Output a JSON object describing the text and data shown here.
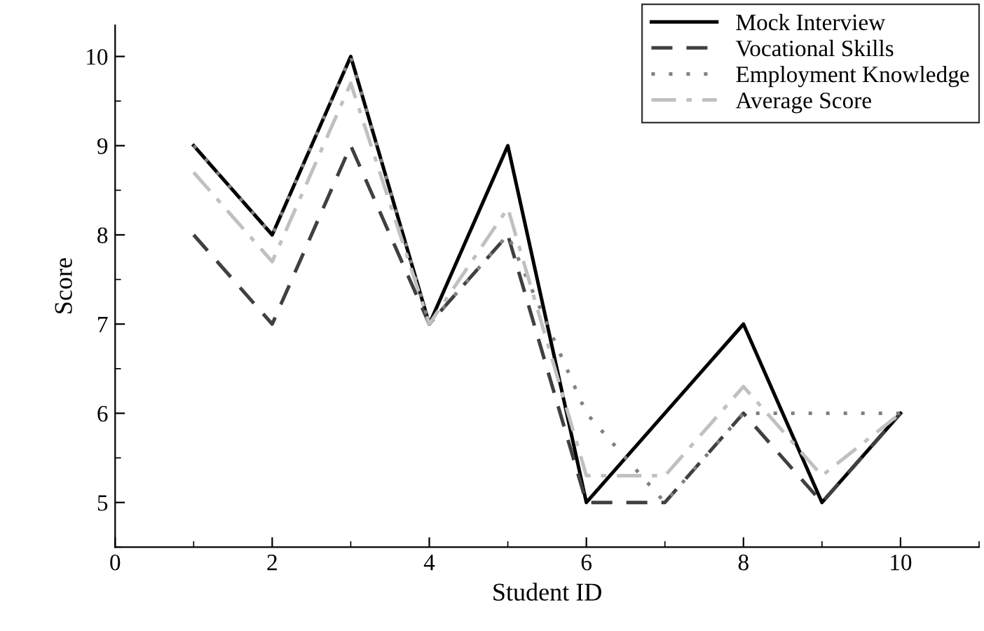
{
  "chart_data": {
    "type": "line",
    "xlabel": "Student ID",
    "ylabel": "Score",
    "x": [
      1,
      2,
      3,
      4,
      5,
      6,
      7,
      8,
      9,
      10
    ],
    "series": [
      {
        "name": "Mock Interview",
        "color": "#000000",
        "line_style": "solid",
        "values": [
          9,
          8,
          10,
          7,
          9,
          5,
          6,
          7,
          5,
          6
        ]
      },
      {
        "name": "Vocational Skills",
        "color": "#404040",
        "line_style": "dashed",
        "values": [
          8,
          7,
          9,
          7,
          8,
          5,
          5,
          6,
          5,
          6
        ]
      },
      {
        "name": "Employment Knowledge",
        "color": "#808080",
        "line_style": "dotted",
        "values": [
          9,
          8,
          10,
          7,
          8,
          6,
          5,
          6,
          6,
          6
        ]
      },
      {
        "name": "Average Score",
        "color": "#c0c0c0",
        "line_style": "dashdot",
        "values": [
          8.7,
          7.7,
          9.7,
          7,
          8.3,
          5.3,
          5.3,
          6.3,
          5.3,
          6
        ]
      }
    ],
    "xlim": [
      0,
      11
    ],
    "ylim": [
      4.5,
      10.35
    ],
    "xticks": [
      0,
      2,
      4,
      6,
      8,
      10
    ],
    "yticks": [
      5,
      6,
      7,
      8,
      9,
      10
    ],
    "grid": false,
    "legend": "top right",
    "marker": "none"
  }
}
